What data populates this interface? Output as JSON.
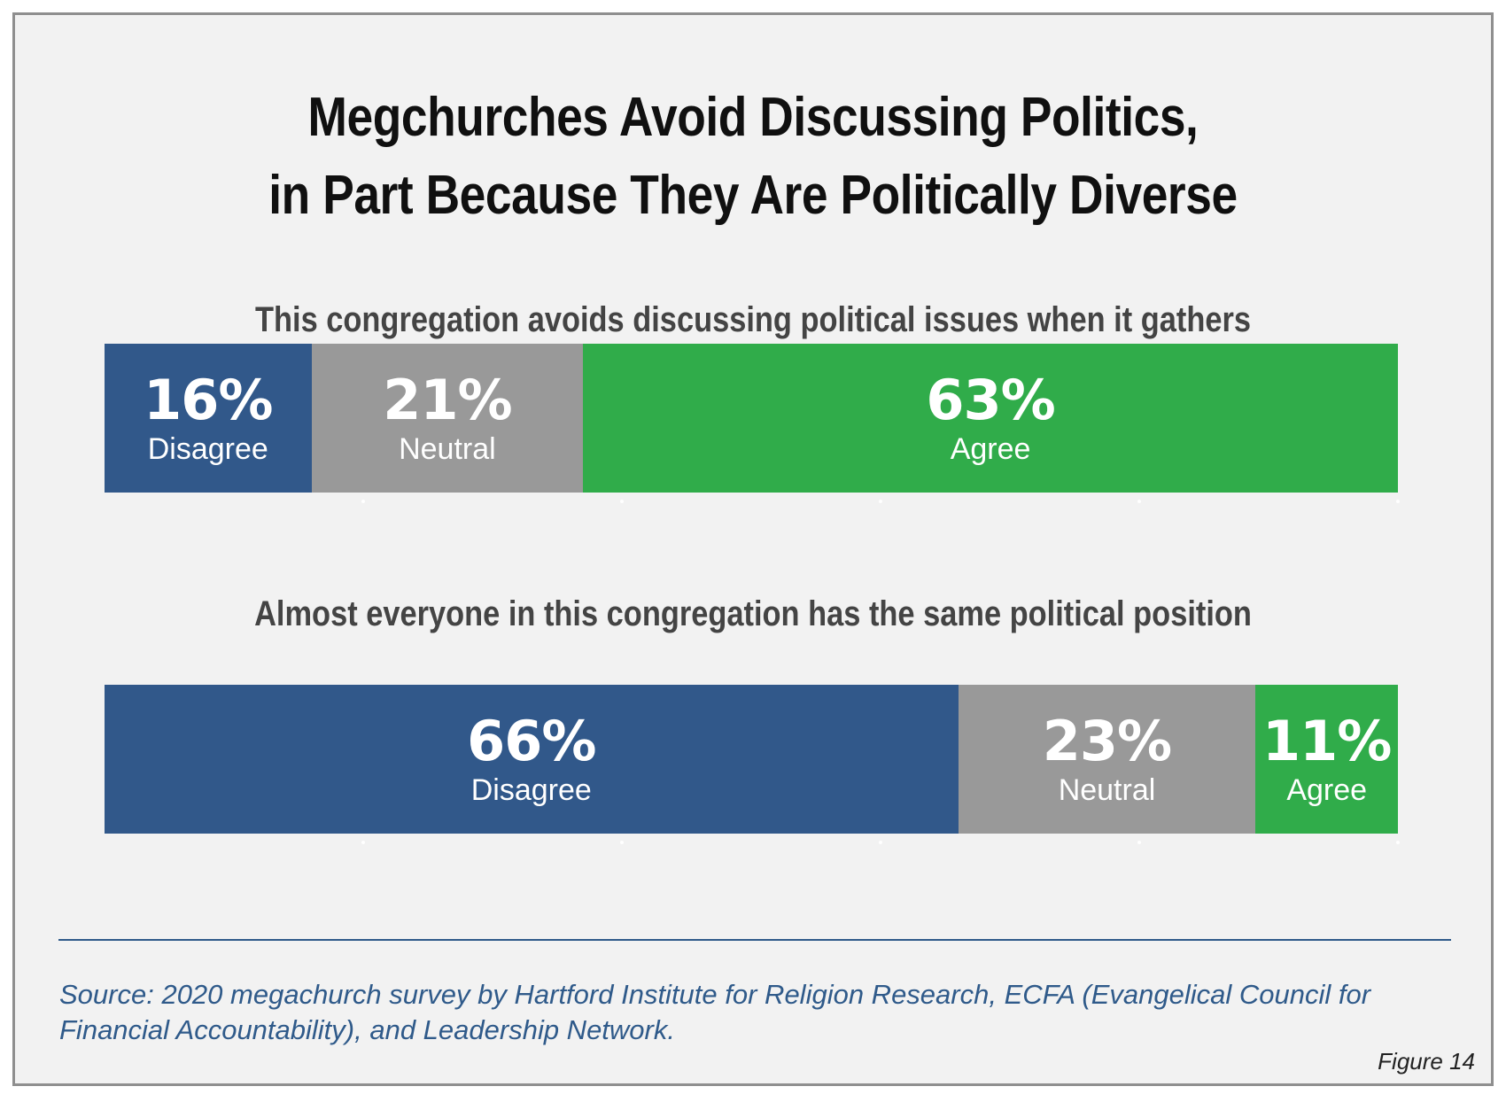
{
  "chart_data": [
    {
      "type": "bar",
      "title": "Megchurches Avoid Discussing Politics, in Part Because They Are Politically Diverse",
      "subtitle": "This congregation avoids discussing political issues when it gathers",
      "categories": [
        "Disagree",
        "Neutral",
        "Agree"
      ],
      "values": [
        16,
        21,
        63
      ],
      "value_labels": [
        "16%",
        "21%",
        "63%"
      ],
      "stacked": true,
      "orientation": "horizontal",
      "colors": [
        "#31588a",
        "#999999",
        "#30ac4a"
      ]
    },
    {
      "type": "bar",
      "subtitle": "Almost everyone in this congregation has the same political position",
      "categories": [
        "Disagree",
        "Neutral",
        "Agree"
      ],
      "values": [
        66,
        23,
        11
      ],
      "value_labels": [
        "66%",
        "23%",
        "11%"
      ],
      "stacked": true,
      "orientation": "horizontal",
      "colors": [
        "#31588a",
        "#999999",
        "#30ac4a"
      ]
    }
  ],
  "title_lines": [
    "Megchurches Avoid Discussing Politics,",
    "in Part Because They Are Politically Diverse"
  ],
  "source": "Source: 2020 megachurch survey by Hartford Institute for Religion Research, ECFA (Evangelical Council for Financial Accountability), and Leadership Network.",
  "figure_label": "Figure 14"
}
